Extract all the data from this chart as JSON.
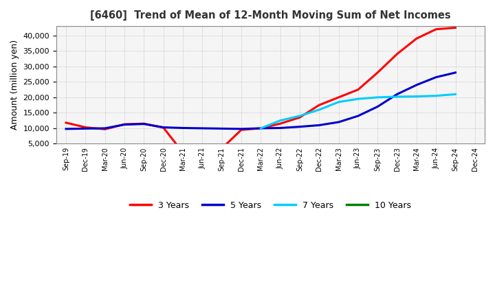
{
  "title": "[6460]  Trend of Mean of 12-Month Moving Sum of Net Incomes",
  "ylabel": "Amount (million yen)",
  "background_color": "#ffffff",
  "plot_bg_color": "#f5f5f5",
  "grid_color": "#aaaaaa",
  "x_labels": [
    "Sep-19",
    "Dec-19",
    "Mar-20",
    "Jun-20",
    "Sep-20",
    "Dec-20",
    "Mar-21",
    "Jun-21",
    "Sep-21",
    "Dec-21",
    "Mar-22",
    "Jun-22",
    "Sep-22",
    "Dec-22",
    "Mar-23",
    "Jun-23",
    "Sep-23",
    "Dec-23",
    "Mar-24",
    "Jun-24",
    "Sep-24",
    "Dec-24"
  ],
  "ylim": [
    5000,
    43000
  ],
  "yticks": [
    5000,
    10000,
    15000,
    20000,
    25000,
    30000,
    35000,
    40000
  ],
  "series": {
    "3 Years": {
      "color": "#ff0000",
      "data_x": [
        0,
        1,
        2,
        3,
        4,
        5,
        6,
        7,
        8,
        9,
        10,
        11,
        12,
        13,
        14,
        15,
        16,
        17,
        18,
        19,
        20
      ],
      "data_y": [
        11800,
        10300,
        9700,
        11300,
        11500,
        10200,
        2200,
        2000,
        3500,
        9500,
        10000,
        11500,
        13500,
        17500,
        20000,
        22500,
        28000,
        34000,
        39000,
        42000,
        42500
      ]
    },
    "5 Years": {
      "color": "#0000cc",
      "data_x": [
        0,
        1,
        2,
        3,
        4,
        5,
        6,
        7,
        8,
        9,
        10,
        11,
        12,
        13,
        14,
        15,
        16,
        17,
        18,
        19,
        20
      ],
      "data_y": [
        9800,
        9900,
        10000,
        11200,
        11400,
        10300,
        10100,
        10000,
        9900,
        9800,
        10000,
        10100,
        10500,
        11000,
        12000,
        14000,
        17000,
        21000,
        24000,
        26500,
        28000
      ]
    },
    "7 Years": {
      "color": "#00ccff",
      "data_x": [
        10,
        11,
        12,
        13,
        14,
        15,
        16,
        17,
        18,
        19,
        20
      ],
      "data_y": [
        10000,
        12500,
        14000,
        16000,
        18500,
        19500,
        20000,
        20200,
        20300,
        20500,
        21000
      ]
    },
    "10 Years": {
      "color": "#008000",
      "data_x": [],
      "data_y": []
    }
  },
  "legend": {
    "labels": [
      "3 Years",
      "5 Years",
      "7 Years",
      "10 Years"
    ],
    "colors": [
      "#ff0000",
      "#0000cc",
      "#00ccff",
      "#008000"
    ]
  }
}
